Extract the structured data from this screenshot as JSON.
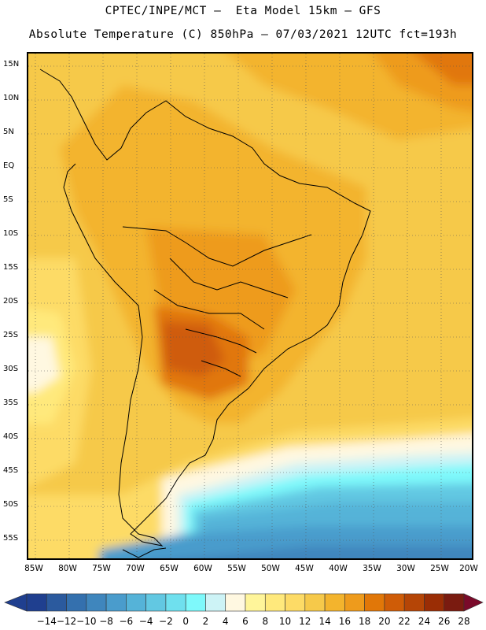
{
  "title": {
    "line1": "CPTEC/INPE/MCT –  Eta Model 15km – GFS",
    "line2": "Absolute Temperature (C) 850hPa – 07/03/2021 12UTC fct=193h"
  },
  "map": {
    "projection": "latitude-longitude",
    "region": "South America",
    "grid": "dotted",
    "lat_range": [
      -58,
      17
    ],
    "lon_range": [
      -86,
      -20
    ]
  },
  "axes": {
    "lat_labels": [
      "15N",
      "10N",
      "5N",
      "EQ",
      "5S",
      "10S",
      "15S",
      "20S",
      "25S",
      "30S",
      "35S",
      "40S",
      "45S",
      "50S",
      "55S"
    ],
    "lat_values": [
      15,
      10,
      5,
      0,
      -5,
      -10,
      -15,
      -20,
      -25,
      -30,
      -35,
      -40,
      -45,
      -50,
      -55
    ],
    "lon_labels": [
      "85W",
      "80W",
      "75W",
      "70W",
      "65W",
      "60W",
      "55W",
      "50W",
      "45W",
      "40W",
      "35W",
      "30W",
      "25W",
      "20W"
    ],
    "lon_values": [
      -85,
      -80,
      -75,
      -70,
      -65,
      -60,
      -55,
      -50,
      -45,
      -40,
      -35,
      -30,
      -25,
      -20
    ]
  },
  "colorbar": {
    "unit": "C",
    "labels": [
      "-14",
      "-12",
      "-10",
      "-8",
      "-6",
      "-4",
      "-2",
      "0",
      "2",
      "4",
      "6",
      "8",
      "10",
      "12",
      "14",
      "16",
      "18",
      "20",
      "22",
      "24",
      "26",
      "28"
    ],
    "colors": [
      "#1f3f8f",
      "#2b5a9e",
      "#3470ae",
      "#3f86bd",
      "#4a9ccc",
      "#55b3d8",
      "#62c8e2",
      "#6fe0ee",
      "#7ef9fb",
      "#cdf3f6",
      "#fff8e1",
      "#fff59a",
      "#ffe97c",
      "#fddb66",
      "#f6c94a",
      "#f3b42d",
      "#ee9b1c",
      "#e17708",
      "#cf5c07",
      "#b54506",
      "#9a2d05",
      "#7a1b10"
    ]
  }
}
